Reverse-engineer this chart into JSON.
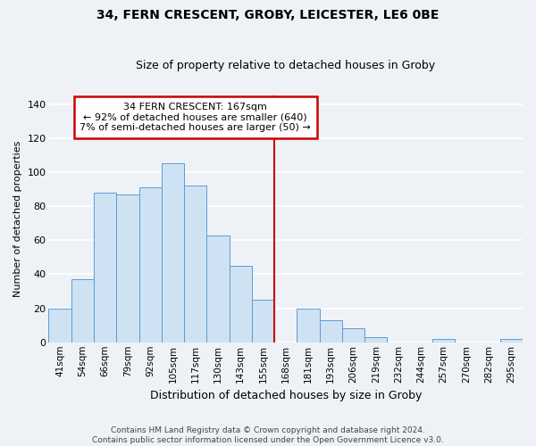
{
  "title": "34, FERN CRESCENT, GROBY, LEICESTER, LE6 0BE",
  "subtitle": "Size of property relative to detached houses in Groby",
  "xlabel": "Distribution of detached houses by size in Groby",
  "ylabel": "Number of detached properties",
  "bar_labels": [
    "41sqm",
    "54sqm",
    "66sqm",
    "79sqm",
    "92sqm",
    "105sqm",
    "117sqm",
    "130sqm",
    "143sqm",
    "155sqm",
    "168sqm",
    "181sqm",
    "193sqm",
    "206sqm",
    "219sqm",
    "232sqm",
    "244sqm",
    "257sqm",
    "270sqm",
    "282sqm",
    "295sqm"
  ],
  "bar_values": [
    20,
    37,
    88,
    87,
    91,
    105,
    92,
    63,
    45,
    25,
    0,
    20,
    13,
    8,
    3,
    0,
    0,
    2,
    0,
    0,
    2
  ],
  "bar_color": "#cfe2f3",
  "bar_edge_color": "#5b9bd5",
  "reference_line_x_label": "168sqm",
  "reference_line_color": "#cc0000",
  "annotation_title": "34 FERN CRESCENT: 167sqm",
  "annotation_line1": "← 92% of detached houses are smaller (640)",
  "annotation_line2": "7% of semi-detached houses are larger (50) →",
  "annotation_box_edge_color": "#cc0000",
  "annotation_box_face_color": "#ffffff",
  "ylim": [
    0,
    145
  ],
  "yticks": [
    0,
    20,
    40,
    60,
    80,
    100,
    120,
    140
  ],
  "footer_line1": "Contains HM Land Registry data © Crown copyright and database right 2024.",
  "footer_line2": "Contains public sector information licensed under the Open Government Licence v3.0.",
  "background_color": "#eef2f7",
  "grid_color": "#ffffff",
  "title_fontsize": 10,
  "subtitle_fontsize": 9,
  "ylabel_fontsize": 8,
  "xlabel_fontsize": 9,
  "tick_fontsize": 7.5,
  "ytick_fontsize": 8,
  "footer_fontsize": 6.5,
  "annotation_fontsize": 8
}
